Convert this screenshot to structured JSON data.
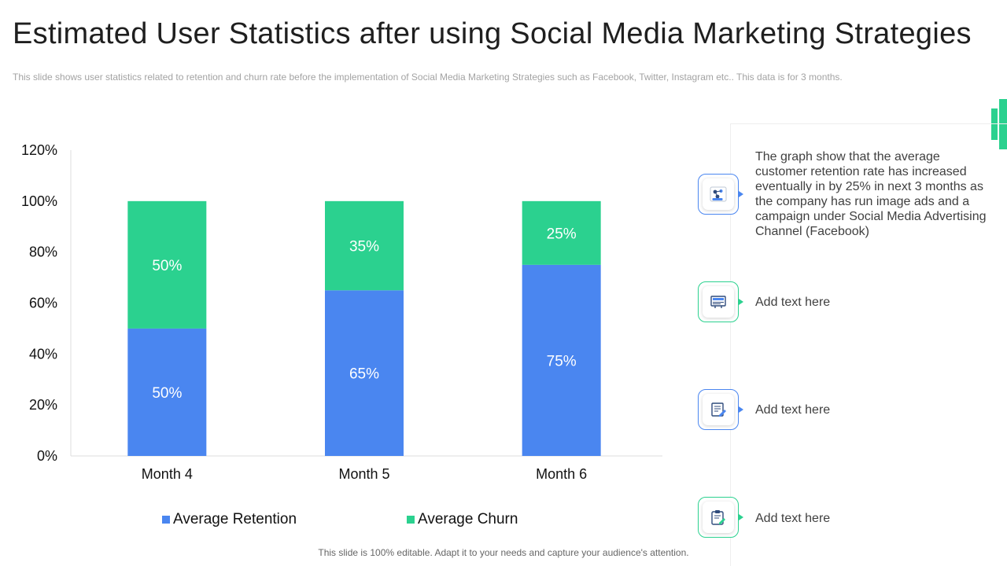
{
  "header": {
    "title": "Estimated User Statistics after using Social Media Marketing Strategies",
    "subtitle": "This slide shows user statistics related to retention and churn rate before the implementation  of Social Media Marketing Strategies  such as Facebook, Twitter, Instagram  etc.. This data is for 3 months."
  },
  "chart_data": {
    "type": "bar",
    "stacked": true,
    "categories": [
      "Month 4",
      "Month 5",
      "Month 6"
    ],
    "series": [
      {
        "name": "Average Retention",
        "values": [
          50,
          65,
          75
        ],
        "color": "#4a86f0",
        "labels": [
          "50%",
          "65%",
          "75%"
        ]
      },
      {
        "name": "Average Churn",
        "values": [
          50,
          35,
          25
        ],
        "color": "#2bd18f",
        "labels": [
          "50%",
          "35%",
          "25%"
        ]
      }
    ],
    "ylim": [
      0,
      120
    ],
    "yticks": [
      0,
      20,
      40,
      60,
      80,
      100,
      120
    ],
    "ytick_labels": [
      "0%",
      "20%",
      "40%",
      "60%",
      "80%",
      "100%",
      "120%"
    ],
    "legend_position": "bottom",
    "grid": false
  },
  "side_panel": {
    "items": [
      {
        "text": "The graph show that the average customer retention rate has increased eventually  in by 25% in next 3 months as the company has run image ads and a campaign under  Social Media Advertising Channel  (Facebook)",
        "icon": "team-network-icon",
        "color": "#4a86f0"
      },
      {
        "text": "Add text here",
        "icon": "billboard-icon",
        "color": "#2bd18f"
      },
      {
        "text": "Add text here",
        "icon": "edit-document-icon",
        "color": "#4a86f0"
      },
      {
        "text": "Add text here",
        "icon": "clipboard-edit-icon",
        "color": "#2bd18f"
      }
    ]
  },
  "footer": {
    "text": "This slide is 100% editable. Adapt it to your needs and capture your audience's attention."
  }
}
